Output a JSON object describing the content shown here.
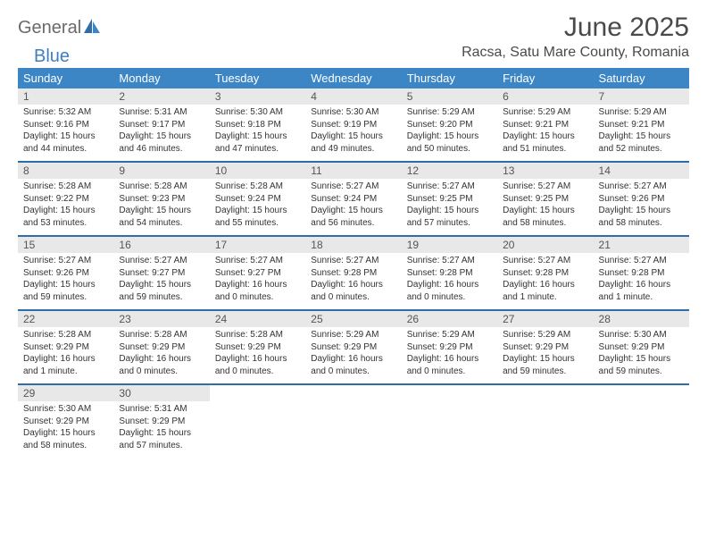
{
  "brand": {
    "part1": "General",
    "part2": "Blue"
  },
  "title": "June 2025",
  "location": "Racsa, Satu Mare County, Romania",
  "colors": {
    "header_bg": "#3d86c6",
    "header_text": "#ffffff",
    "daynum_bg": "#e8e8e8",
    "daynum_text": "#555555",
    "body_text": "#333333",
    "separator": "#2f6da8",
    "logo_gray": "#6a6a6a",
    "logo_blue": "#3d7fbf"
  },
  "weekdays": [
    "Sunday",
    "Monday",
    "Tuesday",
    "Wednesday",
    "Thursday",
    "Friday",
    "Saturday"
  ],
  "weeks": [
    {
      "nums": [
        "1",
        "2",
        "3",
        "4",
        "5",
        "6",
        "7"
      ],
      "cells": [
        {
          "sr": "Sunrise: 5:32 AM",
          "ss": "Sunset: 9:16 PM",
          "d1": "Daylight: 15 hours",
          "d2": "and 44 minutes."
        },
        {
          "sr": "Sunrise: 5:31 AM",
          "ss": "Sunset: 9:17 PM",
          "d1": "Daylight: 15 hours",
          "d2": "and 46 minutes."
        },
        {
          "sr": "Sunrise: 5:30 AM",
          "ss": "Sunset: 9:18 PM",
          "d1": "Daylight: 15 hours",
          "d2": "and 47 minutes."
        },
        {
          "sr": "Sunrise: 5:30 AM",
          "ss": "Sunset: 9:19 PM",
          "d1": "Daylight: 15 hours",
          "d2": "and 49 minutes."
        },
        {
          "sr": "Sunrise: 5:29 AM",
          "ss": "Sunset: 9:20 PM",
          "d1": "Daylight: 15 hours",
          "d2": "and 50 minutes."
        },
        {
          "sr": "Sunrise: 5:29 AM",
          "ss": "Sunset: 9:21 PM",
          "d1": "Daylight: 15 hours",
          "d2": "and 51 minutes."
        },
        {
          "sr": "Sunrise: 5:29 AM",
          "ss": "Sunset: 9:21 PM",
          "d1": "Daylight: 15 hours",
          "d2": "and 52 minutes."
        }
      ]
    },
    {
      "nums": [
        "8",
        "9",
        "10",
        "11",
        "12",
        "13",
        "14"
      ],
      "cells": [
        {
          "sr": "Sunrise: 5:28 AM",
          "ss": "Sunset: 9:22 PM",
          "d1": "Daylight: 15 hours",
          "d2": "and 53 minutes."
        },
        {
          "sr": "Sunrise: 5:28 AM",
          "ss": "Sunset: 9:23 PM",
          "d1": "Daylight: 15 hours",
          "d2": "and 54 minutes."
        },
        {
          "sr": "Sunrise: 5:28 AM",
          "ss": "Sunset: 9:24 PM",
          "d1": "Daylight: 15 hours",
          "d2": "and 55 minutes."
        },
        {
          "sr": "Sunrise: 5:27 AM",
          "ss": "Sunset: 9:24 PM",
          "d1": "Daylight: 15 hours",
          "d2": "and 56 minutes."
        },
        {
          "sr": "Sunrise: 5:27 AM",
          "ss": "Sunset: 9:25 PM",
          "d1": "Daylight: 15 hours",
          "d2": "and 57 minutes."
        },
        {
          "sr": "Sunrise: 5:27 AM",
          "ss": "Sunset: 9:25 PM",
          "d1": "Daylight: 15 hours",
          "d2": "and 58 minutes."
        },
        {
          "sr": "Sunrise: 5:27 AM",
          "ss": "Sunset: 9:26 PM",
          "d1": "Daylight: 15 hours",
          "d2": "and 58 minutes."
        }
      ]
    },
    {
      "nums": [
        "15",
        "16",
        "17",
        "18",
        "19",
        "20",
        "21"
      ],
      "cells": [
        {
          "sr": "Sunrise: 5:27 AM",
          "ss": "Sunset: 9:26 PM",
          "d1": "Daylight: 15 hours",
          "d2": "and 59 minutes."
        },
        {
          "sr": "Sunrise: 5:27 AM",
          "ss": "Sunset: 9:27 PM",
          "d1": "Daylight: 15 hours",
          "d2": "and 59 minutes."
        },
        {
          "sr": "Sunrise: 5:27 AM",
          "ss": "Sunset: 9:27 PM",
          "d1": "Daylight: 16 hours",
          "d2": "and 0 minutes."
        },
        {
          "sr": "Sunrise: 5:27 AM",
          "ss": "Sunset: 9:28 PM",
          "d1": "Daylight: 16 hours",
          "d2": "and 0 minutes."
        },
        {
          "sr": "Sunrise: 5:27 AM",
          "ss": "Sunset: 9:28 PM",
          "d1": "Daylight: 16 hours",
          "d2": "and 0 minutes."
        },
        {
          "sr": "Sunrise: 5:27 AM",
          "ss": "Sunset: 9:28 PM",
          "d1": "Daylight: 16 hours",
          "d2": "and 1 minute."
        },
        {
          "sr": "Sunrise: 5:27 AM",
          "ss": "Sunset: 9:28 PM",
          "d1": "Daylight: 16 hours",
          "d2": "and 1 minute."
        }
      ]
    },
    {
      "nums": [
        "22",
        "23",
        "24",
        "25",
        "26",
        "27",
        "28"
      ],
      "cells": [
        {
          "sr": "Sunrise: 5:28 AM",
          "ss": "Sunset: 9:29 PM",
          "d1": "Daylight: 16 hours",
          "d2": "and 1 minute."
        },
        {
          "sr": "Sunrise: 5:28 AM",
          "ss": "Sunset: 9:29 PM",
          "d1": "Daylight: 16 hours",
          "d2": "and 0 minutes."
        },
        {
          "sr": "Sunrise: 5:28 AM",
          "ss": "Sunset: 9:29 PM",
          "d1": "Daylight: 16 hours",
          "d2": "and 0 minutes."
        },
        {
          "sr": "Sunrise: 5:29 AM",
          "ss": "Sunset: 9:29 PM",
          "d1": "Daylight: 16 hours",
          "d2": "and 0 minutes."
        },
        {
          "sr": "Sunrise: 5:29 AM",
          "ss": "Sunset: 9:29 PM",
          "d1": "Daylight: 16 hours",
          "d2": "and 0 minutes."
        },
        {
          "sr": "Sunrise: 5:29 AM",
          "ss": "Sunset: 9:29 PM",
          "d1": "Daylight: 15 hours",
          "d2": "and 59 minutes."
        },
        {
          "sr": "Sunrise: 5:30 AM",
          "ss": "Sunset: 9:29 PM",
          "d1": "Daylight: 15 hours",
          "d2": "and 59 minutes."
        }
      ]
    },
    {
      "nums": [
        "29",
        "30",
        "",
        "",
        "",
        "",
        ""
      ],
      "cells": [
        {
          "sr": "Sunrise: 5:30 AM",
          "ss": "Sunset: 9:29 PM",
          "d1": "Daylight: 15 hours",
          "d2": "and 58 minutes."
        },
        {
          "sr": "Sunrise: 5:31 AM",
          "ss": "Sunset: 9:29 PM",
          "d1": "Daylight: 15 hours",
          "d2": "and 57 minutes."
        },
        null,
        null,
        null,
        null,
        null
      ]
    }
  ]
}
